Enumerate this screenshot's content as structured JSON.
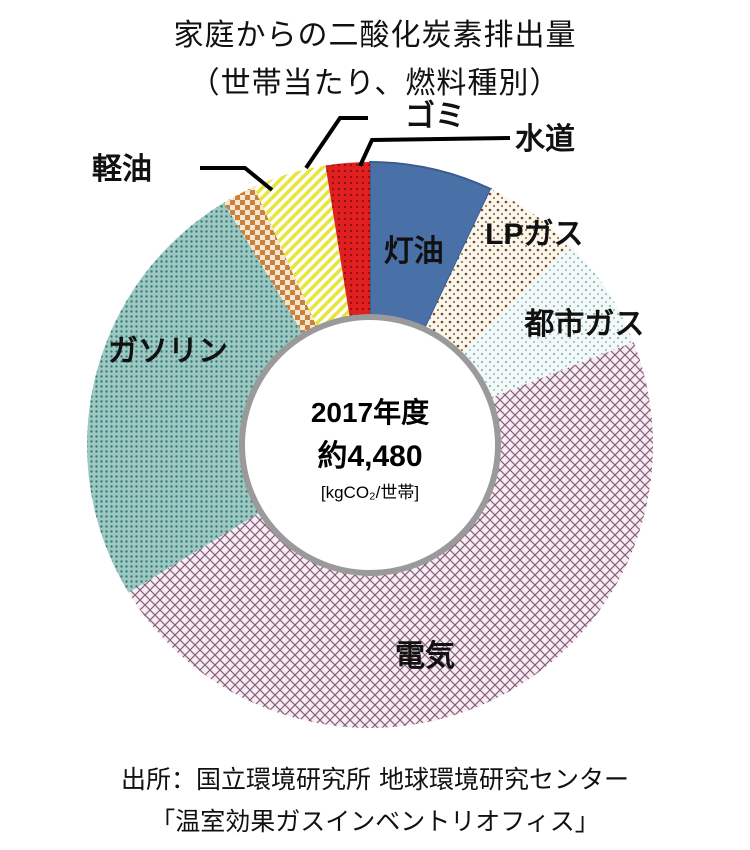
{
  "title": "家庭からの二酸化炭素排出量",
  "subtitle": "（世帯当たり、燃料種別）",
  "chart_data": {
    "type": "pie",
    "donut": true,
    "center_text": {
      "line1": "2017年度",
      "line2": "約4,480",
      "unit": "[kgCO₂/世帯]"
    },
    "slices": [
      {
        "label": "灯油",
        "value": 7.0,
        "color": "#4a70a8",
        "pattern": "solid"
      },
      {
        "label": "LPガス",
        "value": 5.5,
        "color": "#c9b48a",
        "pattern": "dots"
      },
      {
        "label": "都市ガス",
        "value": 6.5,
        "color": "#a9c7c2",
        "pattern": "dots-light"
      },
      {
        "label": "電気",
        "value": 47.0,
        "color": "#a0728e",
        "pattern": "crosshatch"
      },
      {
        "label": "ガソリン",
        "value": 25.0,
        "color": "#3f8a83",
        "pattern": "dense-dots"
      },
      {
        "label": "軽油",
        "value": 1.9,
        "color": "#c8823d",
        "pattern": "checker"
      },
      {
        "label": "ゴミ",
        "value": 4.2,
        "color": "#e7e43a",
        "pattern": "diagonal"
      },
      {
        "label": "水道",
        "value": 2.5,
        "color": "#e02020",
        "pattern": "red-dots"
      }
    ]
  },
  "source": {
    "line1": "出所：国立環境研究所  地球環境研究センター",
    "line2": "「温室効果ガスインベントリオフィス」"
  }
}
